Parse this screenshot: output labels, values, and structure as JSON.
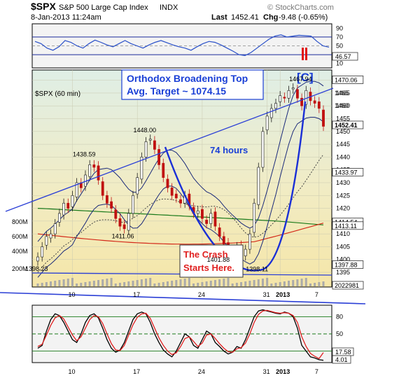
{
  "header": {
    "symbol": "$SPX",
    "name": "S&P 500 Large Cap Index",
    "exchange": "INDX",
    "watermark": "© StockCharts.com",
    "date": "8-Jan-2013 11:24am",
    "last_label": "Last",
    "last_value": "1452.41",
    "chg_label": "Chg",
    "chg_value": "-9.48 (-0.65%)"
  },
  "chart_data": [
    {
      "type": "line",
      "panel": "rsi-top",
      "ylim": [
        0,
        100
      ],
      "ticks": [
        90,
        70,
        50,
        30,
        10
      ],
      "guides": [
        70,
        50,
        30
      ],
      "current": "46.57",
      "series": [
        {
          "values": [
            60,
            55,
            45,
            40,
            48,
            62,
            58,
            50,
            45,
            55,
            63,
            58,
            52,
            48,
            55,
            62,
            55,
            50,
            45,
            52,
            58,
            62,
            57,
            52,
            48,
            45,
            40,
            48,
            55,
            60,
            58,
            52,
            45,
            38,
            30,
            28,
            35,
            45,
            55,
            65,
            72,
            75,
            70,
            72,
            74,
            73,
            72,
            60,
            50,
            47
          ]
        }
      ]
    },
    {
      "type": "candlestick",
      "panel": "price",
      "label": "$SPX (60 min)",
      "ylim": [
        1392,
        1474
      ],
      "ticks": [
        1470,
        1465,
        1460,
        1455,
        1450,
        1445,
        1440,
        1435,
        1430,
        1425,
        1420,
        1415,
        1410,
        1405,
        1400,
        1395
      ],
      "x_ticks": [
        {
          "label": "10",
          "i": 8
        },
        {
          "label": "17",
          "i": 23
        },
        {
          "label": "24",
          "i": 38
        },
        {
          "label": "31",
          "i": 53
        },
        {
          "label": "2013",
          "i": 56
        },
        {
          "label": "7",
          "i": 65
        }
      ],
      "closes": [
        1401,
        1405,
        1409,
        1410,
        1414,
        1418,
        1422,
        1420,
        1425,
        1430,
        1428,
        1433,
        1437,
        1436,
        1431,
        1425,
        1422,
        1420,
        1416,
        1413,
        1412,
        1418,
        1425,
        1432,
        1440,
        1446,
        1447,
        1443,
        1437,
        1432,
        1428,
        1425,
        1424,
        1422,
        1425,
        1421,
        1418,
        1419,
        1416,
        1414,
        1418,
        1413,
        1409,
        1406,
        1404,
        1403,
        1405,
        1402,
        1404,
        1410,
        1422,
        1436,
        1450,
        1456,
        1459,
        1461,
        1464,
        1463,
        1466,
        1467,
        1463,
        1460,
        1466,
        1462,
        1461,
        1459,
        1452
      ],
      "price_tags": [
        "1470.06",
        "1465",
        "1460",
        "1452.41",
        "1433.97",
        "1414.54",
        "1413.11",
        "1397.88"
      ],
      "point_labels": [
        {
          "text": "1438.59",
          "i": 11,
          "y": 1438.59
        },
        {
          "text": "1448.00",
          "i": 25,
          "y": 1448.0
        },
        {
          "text": "1467.94",
          "i": 61,
          "y": 1467.94
        },
        {
          "text": "1411.06",
          "i": 20,
          "y": 1411.06
        },
        {
          "text": "1401.88",
          "i": 42,
          "y": 1401.88
        },
        {
          "text": "1398.11",
          "i": 51,
          "y": 1398.11
        },
        {
          "text": "1398.23",
          "i": 0,
          "y": 1398.23
        }
      ],
      "annotations": {
        "box_line1": "Orthodox Broadening Top",
        "box_line2": "Avg. Target ~ 1074.15",
        "wave": "[C]",
        "hours": "74 hours",
        "crash_line1": "The Crash",
        "crash_line2": "Starts Here."
      },
      "volume_ticks": [
        "800M",
        "600M",
        "400M",
        "200M"
      ],
      "volume_tag": "2022981"
    },
    {
      "type": "line",
      "panel": "stoch-bottom",
      "ylim": [
        0,
        100
      ],
      "ticks": [
        80,
        50,
        20
      ],
      "current_a": "17.58",
      "current_b": "4.01",
      "x_ticks": [
        {
          "label": "10",
          "i": 8
        },
        {
          "label": "17",
          "i": 23
        },
        {
          "label": "24",
          "i": 38
        },
        {
          "label": "31",
          "i": 53
        },
        {
          "label": "2013",
          "i": 56
        },
        {
          "label": "7",
          "i": 65
        }
      ],
      "series": [
        {
          "values": [
            25,
            30,
            55,
            75,
            85,
            82,
            70,
            55,
            40,
            35,
            50,
            70,
            82,
            85,
            78,
            60,
            40,
            25,
            18,
            22,
            35,
            55,
            75,
            85,
            88,
            85,
            70,
            50,
            35,
            22,
            15,
            10,
            20,
            35,
            50,
            45,
            30,
            25,
            40,
            55,
            50,
            35,
            28,
            20,
            15,
            18,
            28,
            25,
            40,
            60,
            80,
            90,
            92,
            90,
            88,
            86,
            85,
            88,
            86,
            80,
            60,
            30,
            20,
            10,
            8,
            5,
            4
          ]
        },
        {
          "values": [
            28,
            32,
            48,
            65,
            78,
            82,
            76,
            62,
            48,
            38,
            45,
            60,
            75,
            82,
            80,
            68,
            50,
            33,
            22,
            21,
            30,
            48,
            66,
            79,
            85,
            86,
            77,
            60,
            43,
            30,
            20,
            14,
            17,
            28,
            42,
            45,
            37,
            28,
            34,
            48,
            50,
            42,
            33,
            25,
            19,
            18,
            24,
            26,
            34,
            50,
            70,
            84,
            90,
            91,
            89,
            87,
            86,
            87,
            86,
            82,
            70,
            45,
            28,
            16,
            11,
            7,
            17.58
          ]
        }
      ]
    }
  ]
}
